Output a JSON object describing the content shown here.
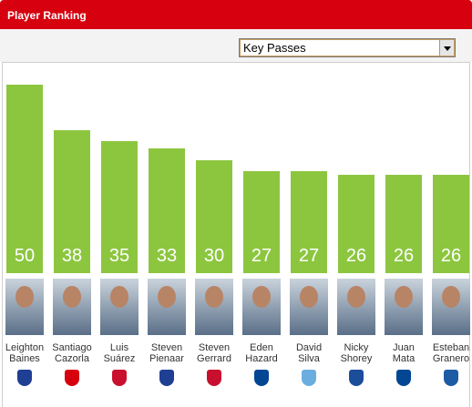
{
  "header": {
    "title": "Player Ranking"
  },
  "selector": {
    "selected": "Key Passes"
  },
  "chart_data": {
    "type": "bar",
    "categories": [
      "Leighton Baines",
      "Santiago Cazorla",
      "Luis Suárez",
      "Steven Pienaar",
      "Steven Gerrard",
      "Eden Hazard",
      "David Silva",
      "Nicky Shorey",
      "Juan Mata",
      "Esteban Granero"
    ],
    "values": [
      50,
      38,
      35,
      33,
      30,
      27,
      27,
      26,
      26,
      26
    ],
    "color": "#8cc63f"
  }
}
